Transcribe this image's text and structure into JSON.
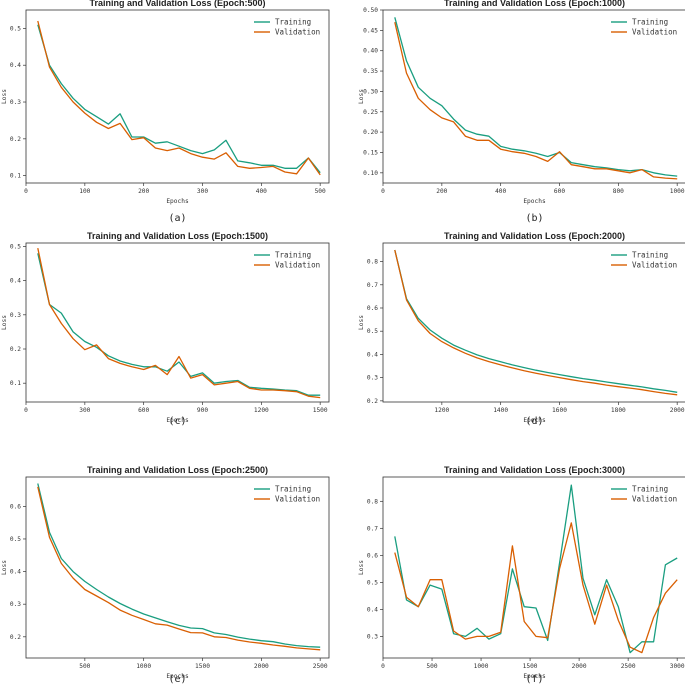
{
  "colors": {
    "training": "#1a9e80",
    "validation": "#d95f02",
    "axis": "#333333"
  },
  "chart_data": [
    {
      "type": "line",
      "caption": "(a)",
      "title": "Training and Validation Loss (Epoch:500)",
      "xlabel": "Epochs",
      "ylabel": "Loss",
      "xlim": [
        0,
        515
      ],
      "ylim": [
        0.08,
        0.55
      ],
      "xticks": [
        0,
        100,
        200,
        300,
        400,
        500
      ],
      "xtick_labels": [
        "0",
        "100",
        "200",
        "300",
        "400",
        "500"
      ],
      "yticks": [
        0.1,
        0.2,
        0.3,
        0.4,
        0.5
      ],
      "ytick_labels": [
        "0.1",
        "0.2",
        "0.3",
        "0.4",
        "0.5"
      ],
      "legend_position": "top-right",
      "x": [
        20,
        40,
        60,
        80,
        100,
        120,
        140,
        160,
        180,
        200,
        220,
        240,
        260,
        280,
        300,
        320,
        340,
        360,
        380,
        400,
        420,
        440,
        460,
        480,
        500
      ],
      "series": [
        {
          "name": "Training",
          "values": [
            0.51,
            0.4,
            0.35,
            0.31,
            0.28,
            0.26,
            0.24,
            0.268,
            0.205,
            0.205,
            0.188,
            0.192,
            0.18,
            0.168,
            0.16,
            0.17,
            0.196,
            0.14,
            0.135,
            0.128,
            0.128,
            0.12,
            0.12,
            0.148,
            0.108
          ]
        },
        {
          "name": "Validation",
          "values": [
            0.52,
            0.395,
            0.34,
            0.3,
            0.27,
            0.245,
            0.228,
            0.242,
            0.198,
            0.203,
            0.175,
            0.168,
            0.175,
            0.16,
            0.15,
            0.145,
            0.162,
            0.125,
            0.12,
            0.122,
            0.125,
            0.11,
            0.105,
            0.148,
            0.102
          ]
        }
      ]
    },
    {
      "type": "line",
      "caption": "(b)",
      "title": "Training and Validation Loss (Epoch:1000)",
      "xlabel": "Epochs",
      "ylabel": "Loss",
      "xlim": [
        0,
        1030
      ],
      "ylim": [
        0.075,
        0.5
      ],
      "xticks": [
        0,
        200,
        400,
        600,
        800,
        1000
      ],
      "xtick_labels": [
        "0",
        "200",
        "400",
        "600",
        "800",
        "1000"
      ],
      "yticks": [
        0.1,
        0.15,
        0.2,
        0.25,
        0.3,
        0.35,
        0.4,
        0.45,
        0.5
      ],
      "ytick_labels": [
        "0.10",
        "0.15",
        "0.20",
        "0.25",
        "0.30",
        "0.35",
        "0.40",
        "0.45",
        "0.50"
      ],
      "legend_position": "top-right",
      "x": [
        40,
        80,
        120,
        160,
        200,
        240,
        280,
        320,
        360,
        400,
        440,
        480,
        520,
        560,
        600,
        640,
        680,
        720,
        760,
        800,
        840,
        880,
        920,
        960,
        1000
      ],
      "series": [
        {
          "name": "Training",
          "values": [
            0.482,
            0.375,
            0.31,
            0.283,
            0.265,
            0.232,
            0.205,
            0.195,
            0.19,
            0.165,
            0.158,
            0.154,
            0.148,
            0.14,
            0.15,
            0.125,
            0.12,
            0.115,
            0.112,
            0.108,
            0.105,
            0.108,
            0.1,
            0.095,
            0.092
          ]
        },
        {
          "name": "Validation",
          "values": [
            0.47,
            0.345,
            0.283,
            0.255,
            0.235,
            0.225,
            0.19,
            0.18,
            0.18,
            0.158,
            0.152,
            0.148,
            0.14,
            0.128,
            0.152,
            0.12,
            0.115,
            0.11,
            0.11,
            0.105,
            0.1,
            0.108,
            0.09,
            0.087,
            0.085
          ]
        }
      ]
    },
    {
      "type": "line",
      "caption": "(c)",
      "title": "Training and Validation Loss (Epoch:1500)",
      "xlabel": "Epochs",
      "ylabel": "Loss",
      "xlim": [
        0,
        1545
      ],
      "ylim": [
        0.045,
        0.51
      ],
      "xticks": [
        0,
        300,
        600,
        900,
        1200,
        1500
      ],
      "xtick_labels": [
        "0",
        "300",
        "600",
        "900",
        "1200",
        "1500"
      ],
      "yticks": [
        0.1,
        0.2,
        0.3,
        0.4,
        0.5
      ],
      "ytick_labels": [
        "0.1",
        "0.2",
        "0.3",
        "0.4",
        "0.5"
      ],
      "legend_position": "top-right",
      "x": [
        60,
        120,
        180,
        240,
        300,
        360,
        420,
        480,
        540,
        600,
        660,
        720,
        780,
        840,
        900,
        960,
        1020,
        1080,
        1140,
        1200,
        1260,
        1320,
        1380,
        1440,
        1500
      ],
      "series": [
        {
          "name": "Training",
          "values": [
            0.48,
            0.33,
            0.305,
            0.25,
            0.222,
            0.205,
            0.18,
            0.165,
            0.155,
            0.148,
            0.148,
            0.135,
            0.162,
            0.12,
            0.13,
            0.1,
            0.105,
            0.108,
            0.088,
            0.085,
            0.083,
            0.08,
            0.078,
            0.065,
            0.065
          ]
        },
        {
          "name": "Validation",
          "values": [
            0.495,
            0.33,
            0.275,
            0.23,
            0.198,
            0.212,
            0.172,
            0.158,
            0.148,
            0.14,
            0.152,
            0.125,
            0.178,
            0.115,
            0.125,
            0.095,
            0.1,
            0.105,
            0.085,
            0.08,
            0.08,
            0.078,
            0.075,
            0.062,
            0.058
          ]
        }
      ]
    },
    {
      "type": "line",
      "caption": "(d)",
      "title": "Training and Validation Loss (Epoch:2000)",
      "xlabel": "Epochs",
      "ylabel": "Loss",
      "xlim": [
        1000,
        2030
      ],
      "ylim": [
        0.195,
        0.88
      ],
      "xticks": [
        1200,
        1400,
        1600,
        1800,
        2000
      ],
      "xtick_labels": [
        "1200",
        "1400",
        "1600",
        "1800",
        "2000"
      ],
      "yticks": [
        0.2,
        0.3,
        0.4,
        0.5,
        0.6,
        0.7,
        0.8
      ],
      "ytick_labels": [
        "0.2",
        "0.3",
        "0.4",
        "0.5",
        "0.6",
        "0.7",
        "0.8"
      ],
      "legend_position": "top-right",
      "x": [
        1040,
        1080,
        1120,
        1160,
        1200,
        1240,
        1280,
        1320,
        1360,
        1400,
        1440,
        1480,
        1520,
        1560,
        1600,
        1640,
        1680,
        1720,
        1760,
        1800,
        1840,
        1880,
        1920,
        1960,
        2000
      ],
      "series": [
        {
          "name": "Training",
          "values": [
            0.85,
            0.64,
            0.555,
            0.505,
            0.47,
            0.44,
            0.418,
            0.398,
            0.382,
            0.368,
            0.355,
            0.343,
            0.332,
            0.322,
            0.313,
            0.304,
            0.296,
            0.289,
            0.281,
            0.274,
            0.267,
            0.26,
            0.252,
            0.245,
            0.237
          ]
        },
        {
          "name": "Validation",
          "values": [
            0.85,
            0.635,
            0.545,
            0.49,
            0.455,
            0.428,
            0.405,
            0.385,
            0.369,
            0.355,
            0.342,
            0.33,
            0.319,
            0.309,
            0.3,
            0.291,
            0.283,
            0.276,
            0.268,
            0.261,
            0.255,
            0.248,
            0.24,
            0.232,
            0.226
          ]
        }
      ]
    },
    {
      "type": "line",
      "caption": "(e)",
      "title": "Training and Validation Loss (Epoch:2500)",
      "xlabel": "Epochs",
      "ylabel": "Loss",
      "xlim": [
        0,
        2575
      ],
      "ylim": [
        0.135,
        0.69
      ],
      "xticks": [
        500,
        1000,
        1500,
        2000,
        2500
      ],
      "xtick_labels": [
        "500",
        "1000",
        "1500",
        "2000",
        "2500"
      ],
      "yticks": [
        0.2,
        0.3,
        0.4,
        0.5,
        0.6
      ],
      "ytick_labels": [
        "0.2",
        "0.3",
        "0.4",
        "0.5",
        "0.6"
      ],
      "legend_position": "top-right",
      "x": [
        100,
        200,
        300,
        400,
        500,
        600,
        700,
        800,
        900,
        1000,
        1100,
        1200,
        1300,
        1400,
        1500,
        1600,
        1700,
        1800,
        1900,
        2000,
        2100,
        2200,
        2300,
        2400,
        2500
      ],
      "series": [
        {
          "name": "Training",
          "values": [
            0.67,
            0.52,
            0.44,
            0.4,
            0.37,
            0.345,
            0.322,
            0.302,
            0.285,
            0.27,
            0.258,
            0.246,
            0.235,
            0.227,
            0.225,
            0.212,
            0.207,
            0.199,
            0.193,
            0.188,
            0.185,
            0.178,
            0.173,
            0.17,
            0.168
          ]
        },
        {
          "name": "Validation",
          "values": [
            0.66,
            0.505,
            0.425,
            0.38,
            0.345,
            0.325,
            0.305,
            0.282,
            0.266,
            0.253,
            0.24,
            0.236,
            0.224,
            0.213,
            0.212,
            0.2,
            0.198,
            0.19,
            0.184,
            0.18,
            0.175,
            0.171,
            0.166,
            0.163,
            0.16
          ]
        }
      ]
    },
    {
      "type": "line",
      "caption": "(f)",
      "title": "Training and Validation Loss (Epoch:3000)",
      "xlabel": "Epochs",
      "ylabel": "Loss",
      "xlim": [
        0,
        3090
      ],
      "ylim": [
        0.22,
        0.89
      ],
      "xticks": [
        0,
        500,
        1000,
        1500,
        2000,
        2500,
        3000
      ],
      "xtick_labels": [
        "0",
        "500",
        "1000",
        "1500",
        "2000",
        "2500",
        "3000"
      ],
      "yticks": [
        0.3,
        0.4,
        0.5,
        0.6,
        0.7,
        0.8
      ],
      "ytick_labels": [
        "0.3",
        "0.4",
        "0.5",
        "0.6",
        "0.7",
        "0.8"
      ],
      "legend_position": "top-right",
      "x": [
        120,
        240,
        360,
        480,
        600,
        720,
        840,
        960,
        1080,
        1200,
        1320,
        1440,
        1560,
        1680,
        1800,
        1920,
        2040,
        2160,
        2280,
        2400,
        2520,
        2640,
        2760,
        2880,
        3000
      ],
      "series": [
        {
          "name": "Training",
          "values": [
            0.67,
            0.435,
            0.41,
            0.49,
            0.475,
            0.31,
            0.3,
            0.33,
            0.29,
            0.31,
            0.55,
            0.41,
            0.405,
            0.285,
            0.57,
            0.86,
            0.515,
            0.38,
            0.51,
            0.41,
            0.24,
            0.28,
            0.28,
            0.565,
            0.59
          ]
        },
        {
          "name": "Validation",
          "values": [
            0.61,
            0.445,
            0.41,
            0.51,
            0.51,
            0.32,
            0.29,
            0.3,
            0.3,
            0.315,
            0.635,
            0.355,
            0.3,
            0.295,
            0.55,
            0.72,
            0.49,
            0.345,
            0.49,
            0.36,
            0.26,
            0.24,
            0.37,
            0.46,
            0.51
          ]
        }
      ]
    }
  ]
}
